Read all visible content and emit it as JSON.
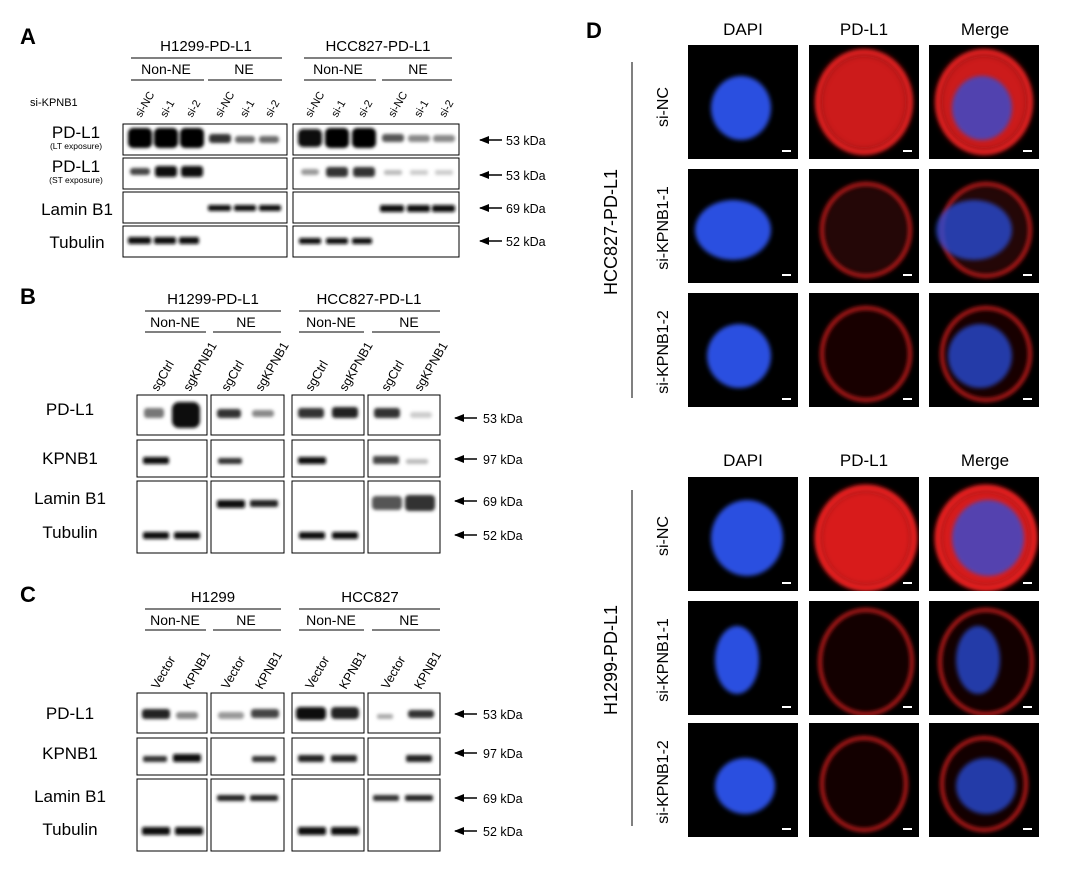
{
  "panel_a": {
    "label": "A",
    "cell_line_1": "H1299-PD-L1",
    "cell_line_2": "HCC827-PD-L1",
    "fractions": [
      "Non-NE",
      "NE",
      "Non-NE",
      "NE"
    ],
    "row_header": "si-KPNB1",
    "lanes": [
      "si-NC",
      "si-1",
      "si-2",
      "si-NC",
      "si-1",
      "si-2",
      "si-NC",
      "si-1",
      "si-2",
      "si-NC",
      "si-1",
      "si-2"
    ],
    "rows": [
      {
        "protein": "PD-L1",
        "note": "(LT exposure)",
        "kda": "53 kDa"
      },
      {
        "protein": "PD-L1",
        "note": "(ST exposure)",
        "kda": "53 kDa"
      },
      {
        "protein": "Lamin B1",
        "kda": "69 kDa"
      },
      {
        "protein": "Tubulin",
        "kda": "52 kDa"
      }
    ]
  },
  "panel_b": {
    "label": "B",
    "cell_line_1": "H1299-PD-L1",
    "cell_line_2": "HCC827-PD-L1",
    "fractions": [
      "Non-NE",
      "NE",
      "Non-NE",
      "NE"
    ],
    "lanes": [
      "sgCtrl",
      "sgKPNB1",
      "sgCtrl",
      "sgKPNB1",
      "sgCtrl",
      "sgKPNB1",
      "sgCtrl",
      "sgKPNB1"
    ],
    "rows": [
      {
        "protein": "PD-L1",
        "kda": "53 kDa"
      },
      {
        "protein": "KPNB1",
        "kda": "97 kDa"
      },
      {
        "protein": "Lamin B1",
        "kda": "69 kDa"
      },
      {
        "protein": "Tubulin",
        "kda": "52 kDa"
      }
    ]
  },
  "panel_c": {
    "label": "C",
    "cell_line_1": "H1299",
    "cell_line_2": "HCC827",
    "fractions": [
      "Non-NE",
      "NE",
      "Non-NE",
      "NE"
    ],
    "lanes": [
      "Vector",
      "KPNB1",
      "Vector",
      "KPNB1",
      "Vector",
      "KPNB1",
      "Vector",
      "KPNB1"
    ],
    "rows": [
      {
        "protein": "PD-L1",
        "kda": "53 kDa"
      },
      {
        "protein": "KPNB1",
        "kda": "97 kDa"
      },
      {
        "protein": "Lamin B1",
        "kda": "69 kDa"
      },
      {
        "protein": "Tubulin",
        "kda": "52 kDa"
      }
    ]
  },
  "panel_d": {
    "label": "D",
    "columns": [
      "DAPI",
      "PD-L1",
      "Merge"
    ],
    "blocks": [
      {
        "cell_line": "HCC827-PD-L1",
        "rows": [
          "si-NC",
          "si-KPNB1-1",
          "si-KPNB1-2"
        ]
      },
      {
        "cell_line": "H1299-PD-L1",
        "rows": [
          "si-NC",
          "si-KPNB1-1",
          "si-KPNB1-2"
        ]
      }
    ],
    "colors": {
      "dapi": "#2a4fe0",
      "pdl1": "#f02020",
      "background": "#000000"
    }
  }
}
